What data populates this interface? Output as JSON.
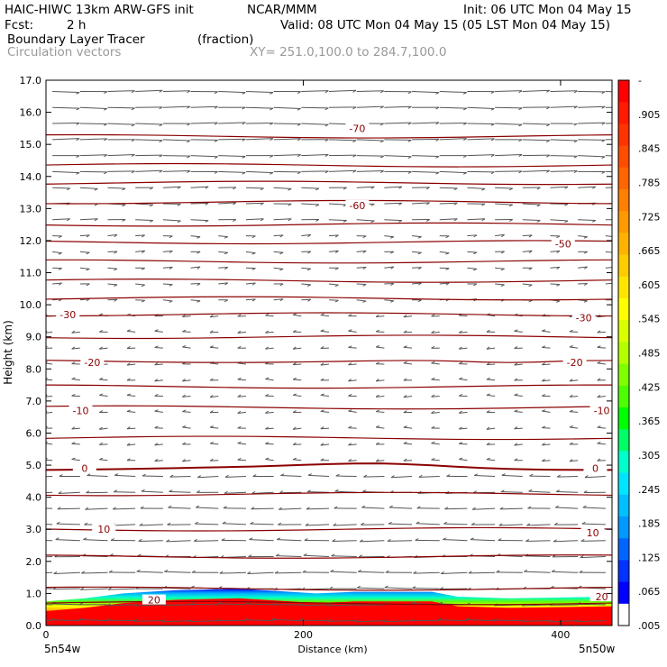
{
  "header": {
    "model": "HAIC-HIWC 13km ARW-GFS init",
    "org": "NCAR/MMM",
    "init": "Init: 06 UTC Mon 04 May 15",
    "fcst_label": "Fcst:",
    "fcst_value": "2 h",
    "valid": "Valid: 08 UTC Mon 04 May 15 (05 LST Mon 04 May 15)",
    "field1": "Boundary Layer Tracer",
    "field1_units": "(fraction)",
    "field2": "Circulation vectors",
    "xy_range": "XY= 251.0,100.0 to 284.7,100.0"
  },
  "chart_data": {
    "type": "heatmap",
    "xlabel": "Distance (km)",
    "ylabel": "Height (km)",
    "xlim": [
      0,
      440
    ],
    "ylim": [
      0,
      17
    ],
    "x_ticks": [
      "0",
      "200",
      "400"
    ],
    "x_tick_values": [
      0,
      200,
      400
    ],
    "y_ticks": [
      "0.0",
      "1.0",
      "2.0",
      "3.0",
      "4.0",
      "5.0",
      "6.0",
      "7.0",
      "8.0",
      "9.0",
      "10.0",
      "11.0",
      "12.0",
      "13.0",
      "14.0",
      "15.0",
      "16.0",
      "17.0"
    ],
    "left_endpoint": "5n54w",
    "right_endpoint": "5n50w",
    "colorbar": {
      "labels": [
        "-",
        ".905",
        ".845",
        ".785",
        ".725",
        ".665",
        ".605",
        ".545",
        ".485",
        ".425",
        ".365",
        ".305",
        ".245",
        ".185",
        ".125",
        ".065",
        ".005"
      ],
      "colors": [
        "#ff0000",
        "#ff1a00",
        "#ff3300",
        "#ff4d00",
        "#ff6600",
        "#ff8000",
        "#ff9900",
        "#ffb300",
        "#ffcc00",
        "#ffe600",
        "#ffff00",
        "#d9ff00",
        "#b3ff00",
        "#80ff00",
        "#4dff00",
        "#00ff00",
        "#00ff66",
        "#00ffcc",
        "#00e5ff",
        "#00c0ff",
        "#0099ff",
        "#0066ff",
        "#0033ff",
        "#0000ff",
        "#ffffff"
      ]
    },
    "temperature_contours": {
      "color": "#8b0000",
      "labels": [
        {
          "text": "-70",
          "x": 242,
          "y": 15.5
        },
        {
          "text": "-60",
          "x": 242,
          "y": 13.1
        },
        {
          "text": "-50",
          "x": 402,
          "y": 11.9
        },
        {
          "text": "-30",
          "x": 17,
          "y": 9.7
        },
        {
          "text": "-30",
          "x": 418,
          "y": 9.6
        },
        {
          "text": "-20",
          "x": 36,
          "y": 8.2
        },
        {
          "text": "-20",
          "x": 411,
          "y": 8.2
        },
        {
          "text": "-10",
          "x": 27,
          "y": 6.7
        },
        {
          "text": "-10",
          "x": 432,
          "y": 6.7
        },
        {
          "text": "0",
          "x": 30,
          "y": 4.9
        },
        {
          "text": "0",
          "x": 427,
          "y": 4.9
        },
        {
          "text": "10",
          "x": 45,
          "y": 3.0
        },
        {
          "text": "10",
          "x": 425,
          "y": 2.9
        },
        {
          "text": "20",
          "x": 84,
          "y": 0.8
        },
        {
          "text": "20",
          "x": 432,
          "y": 0.9
        }
      ],
      "levels_km": [
        0.7,
        1.15,
        2.15,
        3.0,
        4.1,
        4.9,
        5.85,
        6.8,
        7.45,
        8.25,
        9.0,
        9.7,
        10.2,
        10.75,
        11.35,
        11.95,
        12.5,
        13.2,
        13.8,
        14.35,
        15.25
      ]
    },
    "boundary_layer_top_km": [
      {
        "x": 0,
        "h": 0.75
      },
      {
        "x": 30,
        "h": 0.85
      },
      {
        "x": 60,
        "h": 1.0
      },
      {
        "x": 100,
        "h": 1.1
      },
      {
        "x": 150,
        "h": 1.15
      },
      {
        "x": 190,
        "h": 1.05
      },
      {
        "x": 210,
        "h": 1.0
      },
      {
        "x": 240,
        "h": 1.05
      },
      {
        "x": 300,
        "h": 1.05
      },
      {
        "x": 320,
        "h": 0.9
      },
      {
        "x": 360,
        "h": 0.85
      },
      {
        "x": 440,
        "h": 0.9
      }
    ]
  }
}
